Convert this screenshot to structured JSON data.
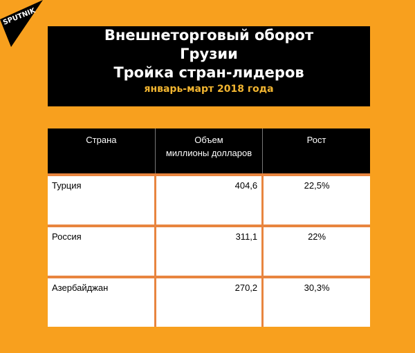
{
  "logo": "SPUTNIK",
  "title": {
    "line1": "Внешнеторговый оборот",
    "line2": "Грузии",
    "line3": "Тройка стран-лидеров",
    "subtitle": "январь-март 2018 года"
  },
  "chart_data": {
    "type": "table",
    "columns": [
      "Страна",
      "Объем\nмиллионы долларов",
      "Рост"
    ],
    "col_head": {
      "c0": "Страна",
      "c1a": "Объем",
      "c1b": "миллионы долларов",
      "c2": "Рост"
    },
    "rows": [
      {
        "country": "Турция",
        "volume": "404,6",
        "growth": "22,5%"
      },
      {
        "country": "Россия",
        "volume": "311,1",
        "growth": "22%"
      },
      {
        "country": "Азербайджан",
        "volume": "270,2",
        "growth": "30,3%"
      }
    ]
  },
  "colors": {
    "background": "#f8a01e",
    "grid": "#e8853f",
    "subtitle": "#f2b530"
  }
}
